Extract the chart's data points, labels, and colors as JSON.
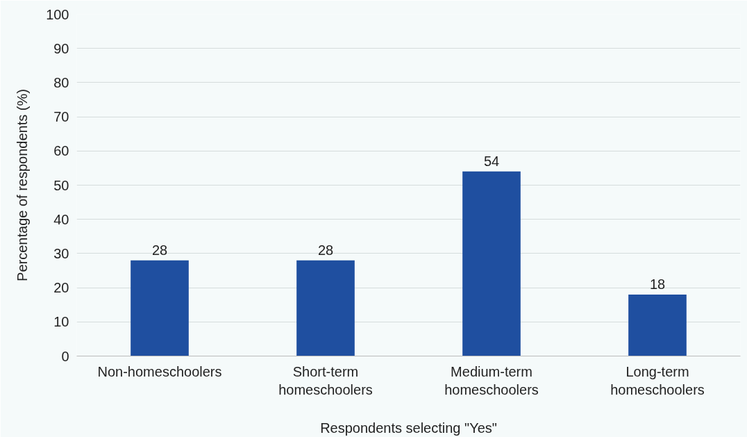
{
  "chart_data": {
    "type": "bar",
    "xlabel": "Respondents selecting \"Yes\"",
    "ylabel": "Percentage of respondents (%)",
    "categories": [
      "Non-homeschoolers",
      "Short-term homeschoolers",
      "Medium-term homeschoolers",
      "Long-term homeschoolers"
    ],
    "values": [
      28,
      28,
      54,
      18
    ],
    "color": "#1f4fa0",
    "ylim": [
      0,
      100
    ],
    "yticks": [
      0,
      10,
      20,
      30,
      40,
      50,
      60,
      70,
      80,
      90,
      100
    ],
    "grid": "y",
    "data_labels": true
  }
}
